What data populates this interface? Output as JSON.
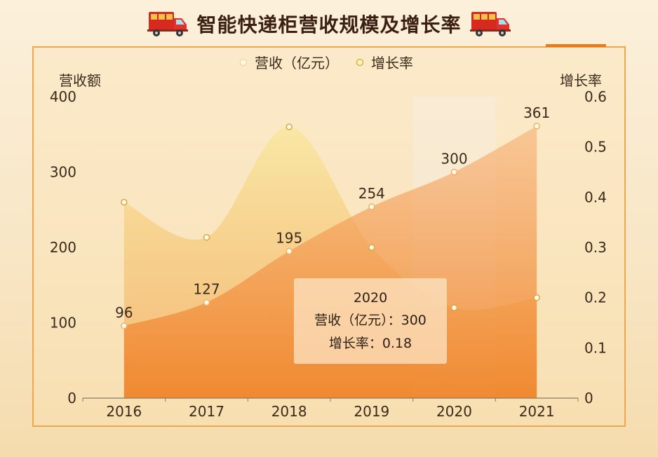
{
  "title": "智能快递柜营收规模及增长率",
  "icons": {
    "left": "delivery-truck-icon",
    "right": "delivery-truck-icon"
  },
  "colors": {
    "revenue": "#f08a2e",
    "growth": "#f3d878",
    "accent": "#e97a1c",
    "border": "#f0a64a"
  },
  "chart_data": {
    "type": "area",
    "categories": [
      "2016",
      "2017",
      "2018",
      "2019",
      "2020",
      "2021"
    ],
    "series": [
      {
        "name": "营收（亿元）",
        "axis": "left",
        "values": [
          96,
          127,
          195,
          254,
          300,
          361
        ]
      },
      {
        "name": "增长率",
        "axis": "right",
        "values": [
          0.39,
          0.32,
          0.54,
          0.3,
          0.18,
          0.2
        ]
      }
    ],
    "y_left": {
      "label": "营收额",
      "min": 0,
      "max": 400,
      "ticks": [
        "0",
        "100",
        "200",
        "300",
        "400"
      ]
    },
    "y_right": {
      "label": "增长率",
      "min": 0,
      "max": 0.6,
      "ticks": [
        "0",
        "0.1",
        "0.2",
        "0.3",
        "0.4",
        "0.5",
        "0.6"
      ]
    },
    "legend": {
      "position": "top-center",
      "items": [
        "营收（亿元）",
        "增长率"
      ]
    },
    "highlight_category": "2020",
    "tooltip": {
      "title": "2020",
      "revenue_line": "营收（亿元）：300",
      "growth_line": "增长率：0.18"
    }
  }
}
